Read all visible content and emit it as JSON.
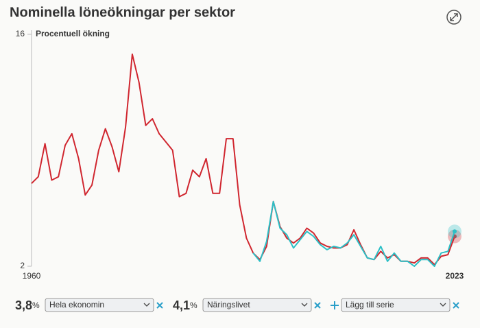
{
  "chart_data": {
    "type": "line",
    "title": "Nominella löneökningar per sektor",
    "y_label": "Procentuell ökning",
    "x": [
      1960,
      1961,
      1962,
      1963,
      1964,
      1965,
      1966,
      1967,
      1968,
      1969,
      1970,
      1971,
      1972,
      1973,
      1974,
      1975,
      1976,
      1977,
      1978,
      1979,
      1980,
      1981,
      1982,
      1983,
      1984,
      1985,
      1986,
      1987,
      1988,
      1989,
      1990,
      1991,
      1992,
      1993,
      1994,
      1995,
      1996,
      1997,
      1998,
      1999,
      2000,
      2001,
      2002,
      2003,
      2004,
      2005,
      2006,
      2007,
      2008,
      2009,
      2010,
      2011,
      2012,
      2013,
      2014,
      2015,
      2016,
      2017,
      2018,
      2019,
      2020,
      2021,
      2022,
      2023
    ],
    "xlim": [
      1960,
      2023
    ],
    "xticks": [
      1960,
      2023
    ],
    "ylim": [
      2,
      16
    ],
    "yticks": [
      2,
      16
    ],
    "unit": "%",
    "current_labels": [
      "3,8",
      "4,1"
    ],
    "series": [
      {
        "name": "Hela ekonomin",
        "color": "#d0262f",
        "values": [
          7.0,
          7.4,
          9.4,
          7.2,
          7.4,
          9.3,
          10.0,
          8.5,
          6.3,
          6.9,
          9.0,
          10.3,
          9.2,
          7.7,
          10.4,
          14.8,
          13.1,
          10.5,
          10.9,
          10.0,
          9.5,
          9.0,
          6.2,
          6.4,
          7.8,
          7.4,
          8.5,
          6.4,
          6.4,
          9.7,
          9.7,
          5.7,
          3.7,
          2.8,
          2.4,
          3.2,
          5.9,
          4.4,
          3.7,
          3.4,
          3.7,
          4.3,
          4.0,
          3.4,
          3.2,
          3.1,
          3.1,
          3.3,
          4.2,
          3.3,
          2.5,
          2.4,
          2.9,
          2.5,
          2.7,
          2.3,
          2.3,
          2.2,
          2.5,
          2.5,
          2.1,
          2.6,
          2.7,
          3.8
        ]
      },
      {
        "name": "Näringslivet",
        "color": "#2bbfc6",
        "values": [
          null,
          null,
          null,
          null,
          null,
          null,
          null,
          null,
          null,
          null,
          null,
          null,
          null,
          null,
          null,
          null,
          null,
          null,
          null,
          null,
          null,
          null,
          null,
          null,
          null,
          null,
          null,
          null,
          null,
          null,
          null,
          null,
          null,
          2.8,
          2.3,
          3.5,
          5.9,
          4.3,
          3.9,
          3.1,
          3.6,
          4.1,
          3.8,
          3.3,
          3.0,
          3.2,
          3.1,
          3.4,
          3.9,
          3.2,
          2.5,
          2.4,
          3.2,
          2.3,
          2.8,
          2.3,
          2.3,
          2.0,
          2.4,
          2.4,
          2.0,
          2.8,
          2.9,
          4.1
        ]
      }
    ]
  },
  "controls": {
    "add_label": "Lägg till serie"
  }
}
